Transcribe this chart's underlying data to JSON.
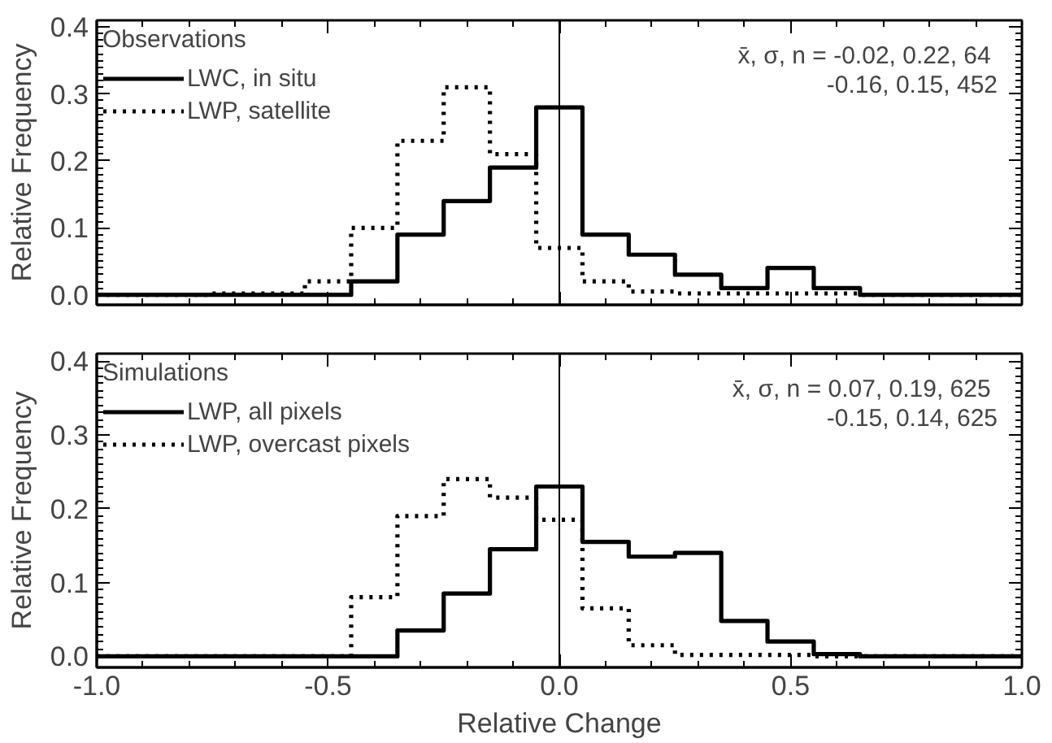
{
  "chart_data": [
    {
      "type": "step",
      "ylabel": "Relative Frequency",
      "legend_title": "Observations",
      "x": [
        -1.0,
        -0.95,
        -0.85,
        -0.75,
        -0.65,
        -0.55,
        -0.45,
        -0.35,
        -0.25,
        -0.15,
        -0.05,
        0.05,
        0.15,
        0.25,
        0.35,
        0.45,
        0.55,
        0.65,
        0.75,
        0.85,
        0.95,
        1.0
      ],
      "series": [
        {
          "name": "LWC, in situ",
          "color": "#000000",
          "line_style": "solid",
          "values": [
            0,
            0,
            0,
            0,
            0,
            0,
            0.02,
            0.09,
            0.14,
            0.19,
            0.28,
            0.09,
            0.06,
            0.03,
            0.01,
            0.04,
            0.01,
            0,
            0,
            0,
            0,
            0
          ]
        },
        {
          "name": "LWP, satellite",
          "color": "#000000",
          "line_style": "dotted",
          "values": [
            0,
            0,
            0,
            0.002,
            0.002,
            0.02,
            0.1,
            0.23,
            0.31,
            0.21,
            0.07,
            0.02,
            0.005,
            0.002,
            0.002,
            0.002,
            0.002,
            0,
            0,
            0,
            0,
            0
          ]
        }
      ],
      "xlim": [
        -1.0,
        1.0
      ],
      "xticks": [
        {
          "value": -1.0,
          "label": null
        },
        {
          "value": -0.5,
          "label": null
        },
        {
          "value": 0,
          "label": null
        },
        {
          "value": 0.5,
          "label": null
        },
        {
          "value": 1.0,
          "label": null
        }
      ],
      "ylim": [
        -0.015,
        0.41
      ],
      "yticks": [
        {
          "value": 0,
          "label": "0.0"
        },
        0.1,
        0.2,
        0.3,
        0.4
      ],
      "tick_labels": "y",
      "grid": false,
      "legend": "top left",
      "ref_lines": [
        {
          "axis": "x",
          "value": 0
        }
      ],
      "annotations": [
        "x̄, σ, n = -0.02, 0.22,  64",
        "-0.16, 0.15, 452"
      ]
    },
    {
      "type": "step",
      "xlabel": "Relative Change",
      "ylabel": "Relative Frequency",
      "legend_title": "Simulations",
      "x": [
        -1.0,
        -0.95,
        -0.85,
        -0.75,
        -0.65,
        -0.55,
        -0.45,
        -0.35,
        -0.25,
        -0.15,
        -0.05,
        0.05,
        0.15,
        0.25,
        0.35,
        0.45,
        0.55,
        0.65,
        0.75,
        0.85,
        0.95,
        1.0
      ],
      "series": [
        {
          "name": "LWP, all pixels",
          "color": "#000000",
          "line_style": "solid",
          "values": [
            0,
            0,
            0,
            0,
            0,
            0,
            0,
            0.035,
            0.085,
            0.145,
            0.23,
            0.155,
            0.135,
            0.14,
            0.048,
            0.02,
            0.003,
            0,
            0,
            0,
            0,
            0
          ]
        },
        {
          "name": "LWP, overcast pixels",
          "color": "#000000",
          "line_style": "dotted",
          "values": [
            0,
            0,
            0,
            0,
            0,
            0,
            0.08,
            0.19,
            0.24,
            0.215,
            0.185,
            0.065,
            0.015,
            0.002,
            0.002,
            0.002,
            0,
            0,
            0,
            0,
            0,
            0
          ]
        }
      ],
      "xlim": [
        -1.0,
        1.0
      ],
      "xticks": [
        {
          "value": -1.0,
          "label": "-1.0"
        },
        {
          "value": -0.5,
          "label": "-0.5"
        },
        {
          "value": 0,
          "label": "0.0"
        },
        {
          "value": 0.5,
          "label": "0.5"
        },
        {
          "value": 1.0,
          "label": "1.0"
        }
      ],
      "ylim": [
        -0.015,
        0.41
      ],
      "yticks": [
        {
          "value": 0,
          "label": "0.0"
        },
        0.1,
        0.2,
        0.3,
        0.4
      ],
      "grid": false,
      "legend": "top left",
      "ref_lines": [
        {
          "axis": "x",
          "value": 0
        }
      ],
      "annotations": [
        "x̄, σ, n =  0.07, 0.19, 625",
        "-0.15, 0.14, 625"
      ]
    }
  ]
}
